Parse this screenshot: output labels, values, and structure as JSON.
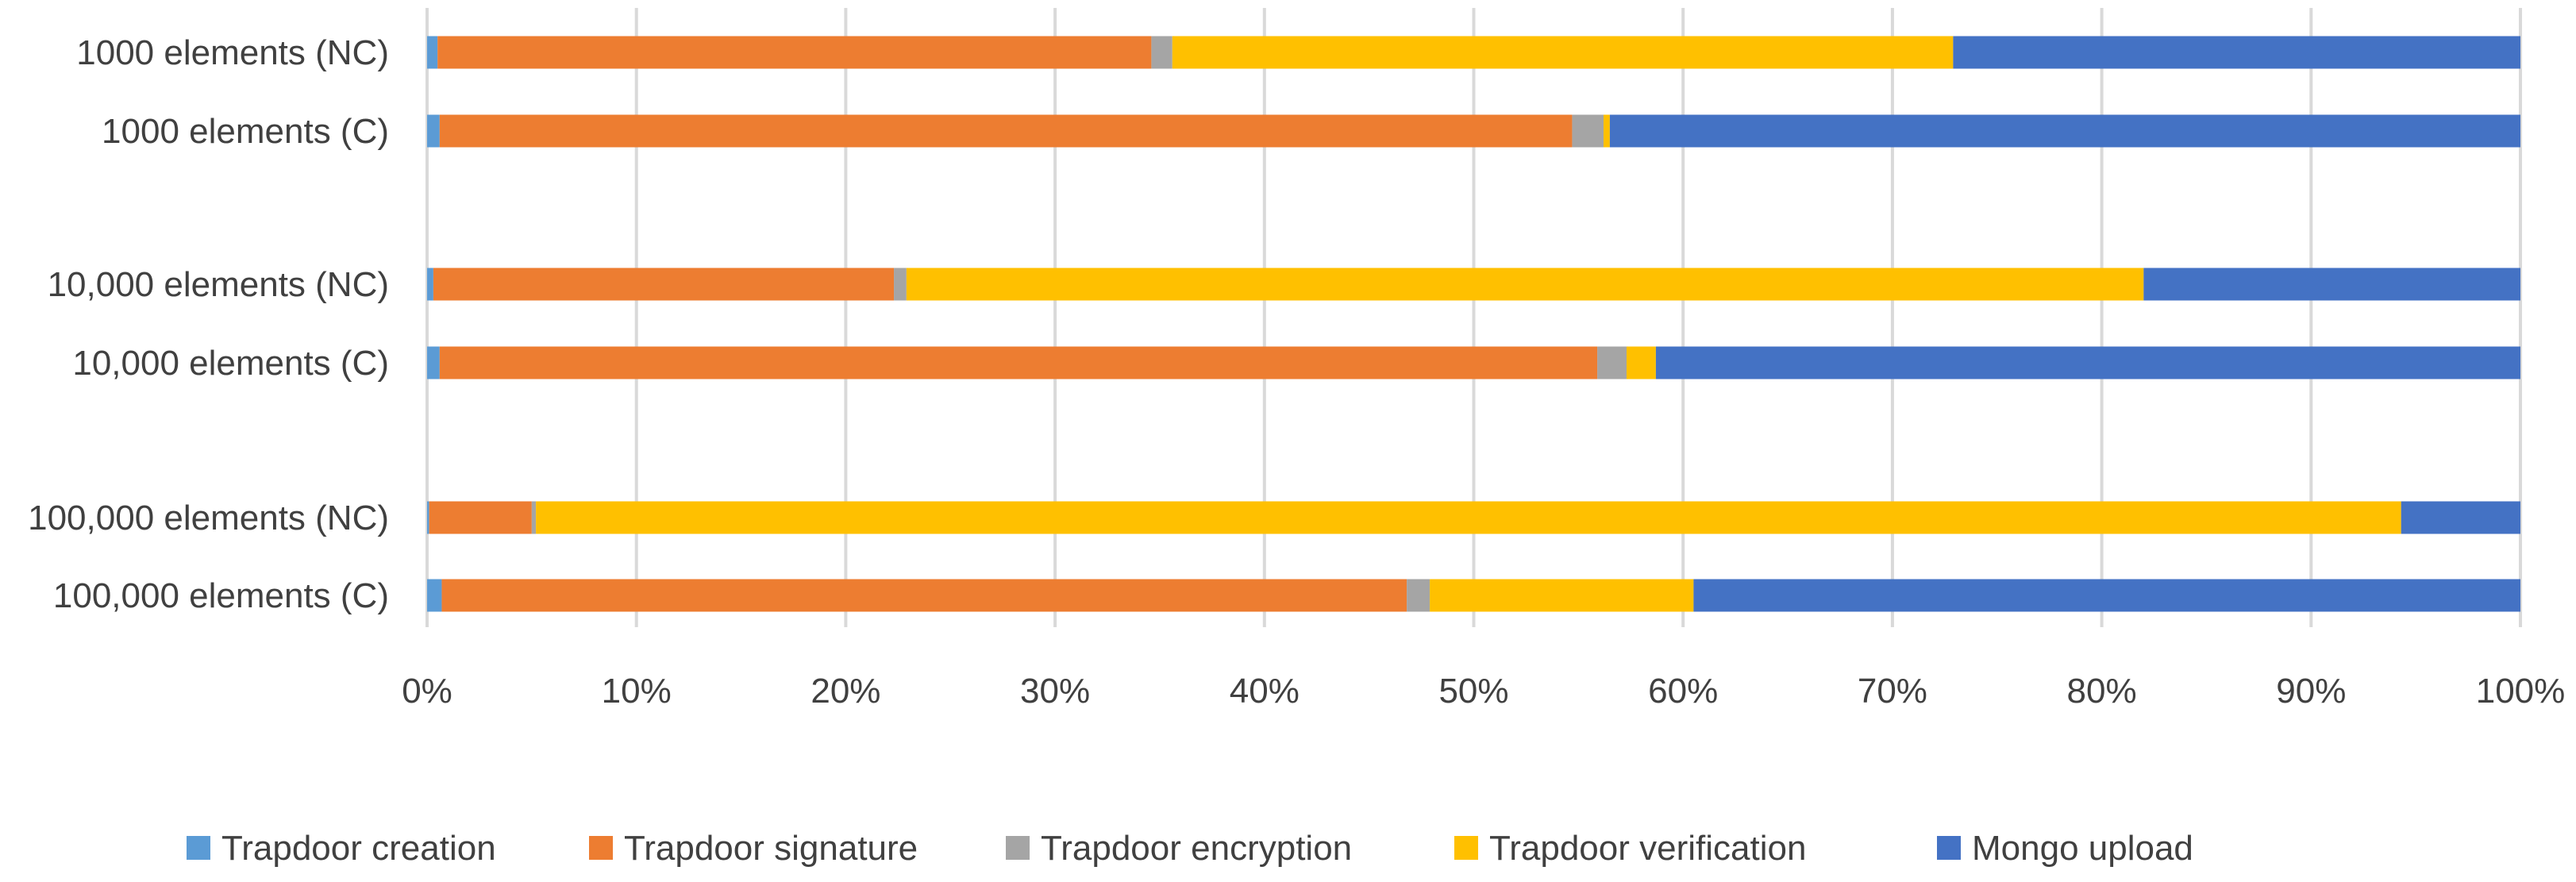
{
  "chart_data": {
    "type": "bar",
    "orientation": "horizontal",
    "stacked": "percent",
    "title": "",
    "xlabel": "",
    "ylabel": "",
    "xlim": [
      0,
      100
    ],
    "x_ticks": [
      "0%",
      "10%",
      "20%",
      "30%",
      "40%",
      "50%",
      "60%",
      "70%",
      "80%",
      "90%",
      "100%"
    ],
    "grid": "vertical",
    "legend_position": "bottom",
    "categories": [
      "1000 elements (NC)",
      "1000 elements (C)",
      "10,000 elements (NC)",
      "10,000 elements (C)",
      "100,000 elements (NC)",
      "100,000 elements (C)"
    ],
    "category_groups": [
      [
        0,
        1
      ],
      [
        2,
        3
      ],
      [
        4,
        5
      ]
    ],
    "series": [
      {
        "name": "Trapdoor creation",
        "color": "#5B9BD5",
        "values": [
          0.5,
          0.6,
          0.3,
          0.6,
          0.1,
          0.7
        ]
      },
      {
        "name": "Trapdoor signature",
        "color": "#ED7D31",
        "values": [
          34.1,
          54.1,
          22.0,
          55.3,
          4.9,
          46.1
        ]
      },
      {
        "name": "Trapdoor encryption",
        "color": "#A5A5A5",
        "values": [
          1.0,
          1.5,
          0.6,
          1.4,
          0.2,
          1.1
        ]
      },
      {
        "name": "Trapdoor verification",
        "color": "#FFC000",
        "values": [
          37.3,
          0.3,
          59.1,
          1.4,
          89.1,
          12.6
        ]
      },
      {
        "name": "Mongo upload",
        "color": "#4472C4",
        "values": [
          27.1,
          43.5,
          18.0,
          41.3,
          5.7,
          39.5
        ]
      }
    ]
  }
}
